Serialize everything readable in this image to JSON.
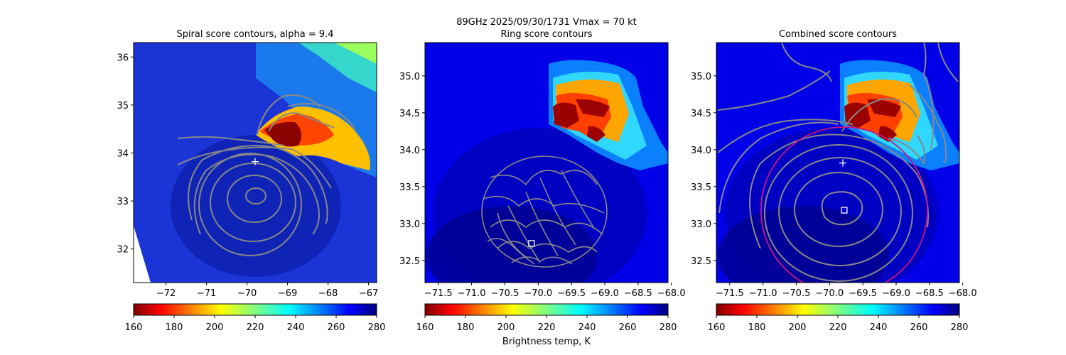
{
  "suptitle": {
    "line1": "89GHz  2025/09/30/1731    Vmax = 70 kt"
  },
  "colorbar_label": "Brightness temp, K",
  "chart_data": [
    {
      "type": "heatmap",
      "title": "Spiral score contours, alpha =  9.4",
      "xlim": [
        -72.8,
        -66.8
      ],
      "ylim": [
        31.3,
        36.3
      ],
      "xticks": [
        -72,
        -71,
        -70,
        -69,
        -68,
        -67
      ],
      "yticks": [
        32,
        33,
        34,
        35,
        36
      ],
      "marker_plus": {
        "x": -69.8,
        "y": 33.82
      },
      "cold_regions": [
        {
          "x": -69.0,
          "y": 34.4,
          "tb": 160
        }
      ],
      "colorbar": {
        "range": [
          160,
          280
        ],
        "ticks": [
          160,
          180,
          200,
          220,
          240,
          260,
          280
        ],
        "colormap": "jet_r"
      }
    },
    {
      "type": "heatmap",
      "title": "Ring score contours",
      "xlim": [
        -71.7,
        -68.05
      ],
      "ylim": [
        32.2,
        35.45
      ],
      "xticks": [
        -71.5,
        -71.0,
        -70.5,
        -70.0,
        -69.5,
        -69.0,
        -68.5,
        -68.0
      ],
      "yticks": [
        32.5,
        33.0,
        33.5,
        34.0,
        34.5,
        35.0
      ],
      "marker_square": {
        "x": -70.1,
        "y": 32.73
      },
      "cold_regions": [
        {
          "x": -69.1,
          "y": 34.45,
          "tb": 160
        }
      ],
      "colorbar": {
        "range": [
          160,
          280
        ],
        "ticks": [
          160,
          180,
          200,
          220,
          240,
          260,
          280
        ],
        "colormap": "jet_r"
      }
    },
    {
      "type": "heatmap",
      "title": "Combined score contours",
      "xlim": [
        -71.7,
        -68.05
      ],
      "ylim": [
        32.2,
        35.45
      ],
      "xticks": [
        -71.5,
        -71.0,
        -70.5,
        -70.0,
        -69.5,
        -69.0,
        -68.5,
        -68.0
      ],
      "yticks": [
        32.5,
        33.0,
        33.5,
        34.0,
        34.5,
        35.0
      ],
      "marker_plus": {
        "x": -69.8,
        "y": 33.82
      },
      "marker_square": {
        "x": -69.78,
        "y": 33.18
      },
      "ring": {
        "cx": -69.78,
        "cy": 33.18,
        "r_deg": 1.25,
        "color": "#c71585"
      },
      "cold_regions": [
        {
          "x": -69.1,
          "y": 34.45,
          "tb": 160
        }
      ],
      "colorbar": {
        "range": [
          160,
          280
        ],
        "ticks": [
          160,
          180,
          200,
          220,
          240,
          260,
          280
        ],
        "colormap": "jet_r"
      }
    }
  ]
}
